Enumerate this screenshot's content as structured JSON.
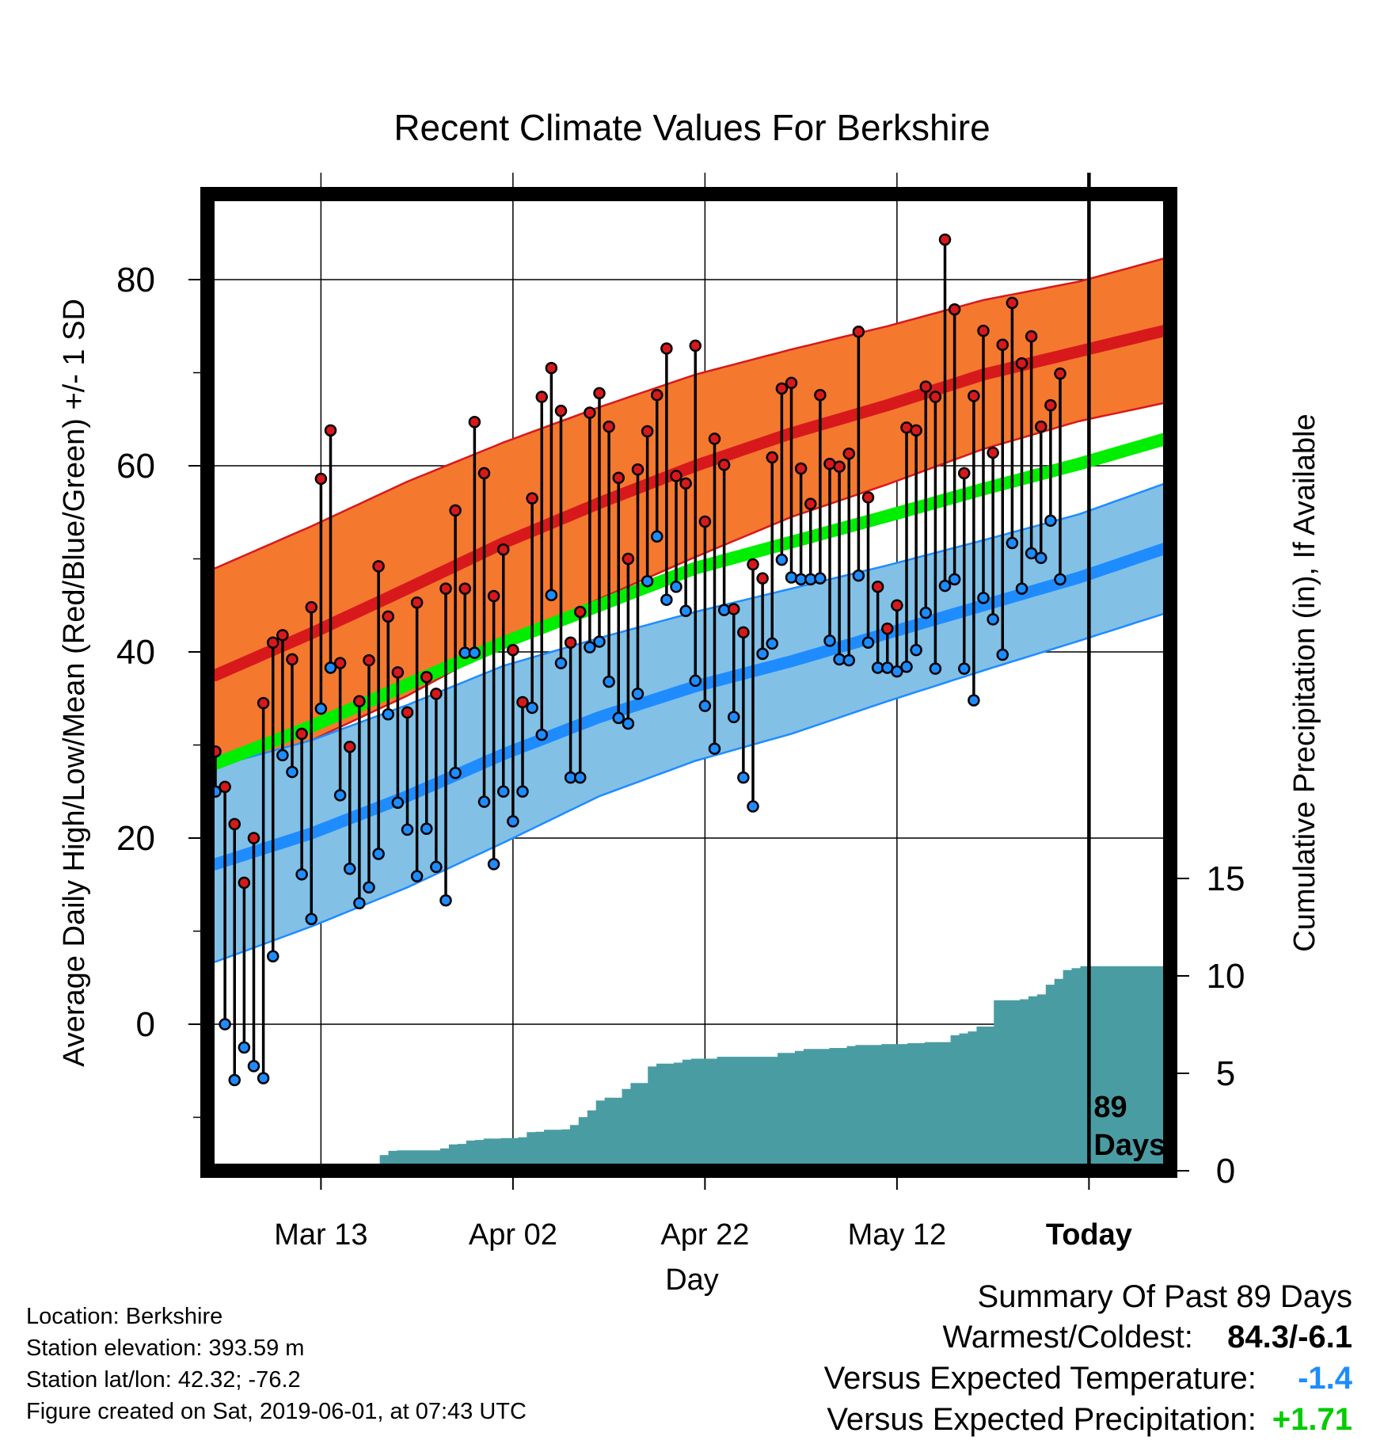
{
  "chart_data": {
    "type": "line",
    "title": "Recent Climate Values For Berkshire",
    "xlabel": "Day",
    "ylabel": "Average Daily High/Low/Mean (Red/Blue/Green) +/- 1 SD",
    "y2label": "Cumulative Precipitation (in), If Available",
    "x_ticks": [
      {
        "day": 11,
        "label": "Mar 13"
      },
      {
        "day": 31,
        "label": "Apr 02"
      },
      {
        "day": 51,
        "label": "Apr 22"
      },
      {
        "day": 71,
        "label": "May 12"
      },
      {
        "day": 91,
        "label": "Today"
      }
    ],
    "y_ticks": [
      0,
      20,
      40,
      60,
      80
    ],
    "y2_ticks": [
      0,
      5,
      10,
      15
    ],
    "ylim": [
      -15,
      90
    ],
    "y2lim": [
      0,
      15
    ],
    "today_label": "89 Days",
    "colors": {
      "high": "#d7191c",
      "high_band": "#f5782f",
      "low": "#1e8cff",
      "low_band": "#82c0e6",
      "mean": "#00ee00",
      "precip": "#4a9ca3"
    },
    "normal_days": [
      0,
      10,
      20,
      30,
      40,
      50,
      60,
      70,
      80,
      90,
      100
    ],
    "normal_high": [
      37.5,
      42,
      46.8,
      51.7,
      56,
      60,
      63.5,
      66.5,
      69.8,
      72.3,
      74.8
    ],
    "normal_high_sd": [
      11.5,
      11.5,
      11.5,
      10.8,
      10.3,
      9.8,
      9,
      8.5,
      8,
      7.5,
      7.8
    ],
    "normal_low": [
      17.2,
      20.5,
      24.5,
      29,
      33,
      36.3,
      39,
      42,
      45,
      48,
      51.5
    ],
    "normal_low_sd": [
      10.5,
      10,
      9.8,
      9.5,
      8.5,
      8,
      7.8,
      7.3,
      7,
      6.8,
      7
    ],
    "normal_mean": [
      28,
      32,
      36.5,
      41,
      45,
      49,
      51.8,
      54.6,
      57.5,
      60.2,
      63.2
    ],
    "observed": {
      "highs": [
        29.3,
        25.5,
        21.5,
        15.2,
        20,
        34.5,
        41,
        41.8,
        39.2,
        31.2,
        44.8,
        58.6,
        63.8,
        38.8,
        29.8,
        34.7,
        39.1,
        49.2,
        43.8,
        37.8,
        33.5,
        45.3,
        37.3,
        35.5,
        46.8,
        55.2,
        46.8,
        64.7,
        59.2,
        46,
        51,
        40.2,
        34.6,
        56.5,
        67.4,
        70.5,
        65.9,
        41,
        44.3,
        65.7,
        67.8,
        64.2,
        58.7,
        50,
        59.6,
        63.7,
        67.6,
        72.6,
        58.9,
        58.1,
        72.9,
        54,
        62.9,
        60.1,
        44.6,
        42.1,
        49.4,
        47.9,
        60.9,
        68.3,
        68.9,
        59.7,
        55.9,
        67.6,
        60.2,
        59.9,
        61.3,
        74.4,
        56.6,
        47,
        42.5,
        45,
        64.1,
        63.8,
        68.5,
        67.4,
        84.3,
        76.8,
        59.2,
        67.5,
        74.5,
        61.4,
        73,
        77.5,
        71,
        73.9,
        64.2,
        66.5,
        69.9
      ],
      "lows": [
        25,
        0,
        -6,
        -2.5,
        -4.5,
        -5.8,
        7.3,
        28.9,
        27.1,
        16.1,
        11.3,
        33.9,
        38.3,
        24.6,
        16.7,
        13,
        14.7,
        18.3,
        33.3,
        23.8,
        20.9,
        15.9,
        21,
        16.9,
        13.3,
        27,
        39.9,
        39.9,
        23.9,
        17.2,
        25,
        21.8,
        25,
        34,
        31.1,
        46.1,
        38.8,
        26.5,
        26.5,
        40.5,
        41.1,
        36.8,
        32.9,
        32.3,
        35.5,
        47.6,
        52.4,
        45.6,
        47,
        44.4,
        36.9,
        34.2,
        29.6,
        44.5,
        33,
        26.5,
        23.4,
        39.8,
        40.9,
        49.9,
        48,
        47.8,
        47.8,
        47.9,
        41.2,
        39.2,
        39.1,
        48.2,
        41,
        38.3,
        38.3,
        37.9,
        38.4,
        40.2,
        44.2,
        38.2,
        47.1,
        47.8,
        38.2,
        34.8,
        45.8,
        43.5,
        39.7,
        51.7,
        46.8,
        50.6,
        50.1,
        54.1,
        47.8
      ]
    },
    "precip": [
      0,
      0,
      0,
      0,
      0,
      0,
      0,
      0.05,
      0.05,
      0.05,
      0.05,
      0.08,
      0.12,
      0.12,
      0.15,
      0.15,
      0.18,
      0.18,
      0.18,
      0.8,
      1.02,
      1.05,
      1.05,
      1.05,
      1.05,
      1.05,
      1.15,
      1.35,
      1.38,
      1.55,
      1.58,
      1.65,
      1.65,
      1.68,
      1.68,
      1.72,
      1.98,
      2,
      2.1,
      2.1,
      2.12,
      2.35,
      2.75,
      3.1,
      3.6,
      3.75,
      3.75,
      4.2,
      4.5,
      4.5,
      5.35,
      5.5,
      5.5,
      5.55,
      5.7,
      5.75,
      5.75,
      5.75,
      5.85,
      5.85,
      5.85,
      5.85,
      5.85,
      5.85,
      5.85,
      6.05,
      6.05,
      6.15,
      6.25,
      6.25,
      6.25,
      6.3,
      6.3,
      6.4,
      6.45,
      6.45,
      6.45,
      6.5,
      6.5,
      6.5,
      6.55,
      6.55,
      6.6,
      6.6,
      6.6,
      6.95,
      7.05,
      7.15,
      7.4,
      7.4,
      8.75,
      8.75,
      8.75,
      8.8,
      8.95,
      9.05,
      9.55,
      9.85,
      10.3,
      10.4,
      10.5
    ],
    "precip_extended": [
      8,
      8,
      8,
      8,
      8.5,
      8.5,
      8.5,
      9,
      9,
      9.5,
      9.6,
      9.8,
      10,
      10.2,
      10.5
    ]
  },
  "footer": {
    "location": "Location: Berkshire",
    "elevation": "Station elevation: 393.59 m",
    "latlon": "Station lat/lon: 42.32; -76.2",
    "created": "Figure created on Sat, 2019-06-01, at 07:43 UTC"
  },
  "summary": {
    "heading": "Summary Of Past 89 Days",
    "warmest_label": "Warmest/Coldest:",
    "warmest_value": "84.3/-6.1",
    "temp_label": "Versus Expected Temperature:",
    "temp_value": "-1.4",
    "temp_color": "#1e8cff",
    "precip_label": "Versus Expected Precipitation:",
    "precip_value": "+1.71",
    "precip_color": "#00cc00"
  }
}
